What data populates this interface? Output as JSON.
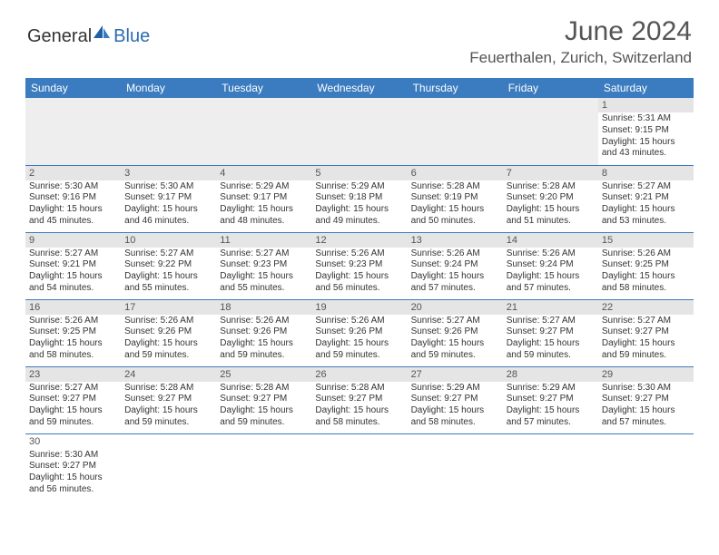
{
  "brand": {
    "general": "General",
    "blue": "Blue"
  },
  "title": "June 2024",
  "location": "Feuerthalen, Zurich, Switzerland",
  "colors": {
    "header_bg": "#3b7bbf",
    "header_text": "#ffffff",
    "daynum_bg": "#e5e5e5",
    "row1_bg": "#eeeeee",
    "border": "#3b7bbf",
    "title_color": "#555555"
  },
  "weekdays": [
    "Sunday",
    "Monday",
    "Tuesday",
    "Wednesday",
    "Thursday",
    "Friday",
    "Saturday"
  ],
  "weeks": [
    [
      {
        "n": "",
        "sr": "",
        "ss": "",
        "dl": ""
      },
      {
        "n": "",
        "sr": "",
        "ss": "",
        "dl": ""
      },
      {
        "n": "",
        "sr": "",
        "ss": "",
        "dl": ""
      },
      {
        "n": "",
        "sr": "",
        "ss": "",
        "dl": ""
      },
      {
        "n": "",
        "sr": "",
        "ss": "",
        "dl": ""
      },
      {
        "n": "",
        "sr": "",
        "ss": "",
        "dl": ""
      },
      {
        "n": "1",
        "sr": "Sunrise: 5:31 AM",
        "ss": "Sunset: 9:15 PM",
        "dl": "Daylight: 15 hours and 43 minutes."
      }
    ],
    [
      {
        "n": "2",
        "sr": "Sunrise: 5:30 AM",
        "ss": "Sunset: 9:16 PM",
        "dl": "Daylight: 15 hours and 45 minutes."
      },
      {
        "n": "3",
        "sr": "Sunrise: 5:30 AM",
        "ss": "Sunset: 9:17 PM",
        "dl": "Daylight: 15 hours and 46 minutes."
      },
      {
        "n": "4",
        "sr": "Sunrise: 5:29 AM",
        "ss": "Sunset: 9:17 PM",
        "dl": "Daylight: 15 hours and 48 minutes."
      },
      {
        "n": "5",
        "sr": "Sunrise: 5:29 AM",
        "ss": "Sunset: 9:18 PM",
        "dl": "Daylight: 15 hours and 49 minutes."
      },
      {
        "n": "6",
        "sr": "Sunrise: 5:28 AM",
        "ss": "Sunset: 9:19 PM",
        "dl": "Daylight: 15 hours and 50 minutes."
      },
      {
        "n": "7",
        "sr": "Sunrise: 5:28 AM",
        "ss": "Sunset: 9:20 PM",
        "dl": "Daylight: 15 hours and 51 minutes."
      },
      {
        "n": "8",
        "sr": "Sunrise: 5:27 AM",
        "ss": "Sunset: 9:21 PM",
        "dl": "Daylight: 15 hours and 53 minutes."
      }
    ],
    [
      {
        "n": "9",
        "sr": "Sunrise: 5:27 AM",
        "ss": "Sunset: 9:21 PM",
        "dl": "Daylight: 15 hours and 54 minutes."
      },
      {
        "n": "10",
        "sr": "Sunrise: 5:27 AM",
        "ss": "Sunset: 9:22 PM",
        "dl": "Daylight: 15 hours and 55 minutes."
      },
      {
        "n": "11",
        "sr": "Sunrise: 5:27 AM",
        "ss": "Sunset: 9:23 PM",
        "dl": "Daylight: 15 hours and 55 minutes."
      },
      {
        "n": "12",
        "sr": "Sunrise: 5:26 AM",
        "ss": "Sunset: 9:23 PM",
        "dl": "Daylight: 15 hours and 56 minutes."
      },
      {
        "n": "13",
        "sr": "Sunrise: 5:26 AM",
        "ss": "Sunset: 9:24 PM",
        "dl": "Daylight: 15 hours and 57 minutes."
      },
      {
        "n": "14",
        "sr": "Sunrise: 5:26 AM",
        "ss": "Sunset: 9:24 PM",
        "dl": "Daylight: 15 hours and 57 minutes."
      },
      {
        "n": "15",
        "sr": "Sunrise: 5:26 AM",
        "ss": "Sunset: 9:25 PM",
        "dl": "Daylight: 15 hours and 58 minutes."
      }
    ],
    [
      {
        "n": "16",
        "sr": "Sunrise: 5:26 AM",
        "ss": "Sunset: 9:25 PM",
        "dl": "Daylight: 15 hours and 58 minutes."
      },
      {
        "n": "17",
        "sr": "Sunrise: 5:26 AM",
        "ss": "Sunset: 9:26 PM",
        "dl": "Daylight: 15 hours and 59 minutes."
      },
      {
        "n": "18",
        "sr": "Sunrise: 5:26 AM",
        "ss": "Sunset: 9:26 PM",
        "dl": "Daylight: 15 hours and 59 minutes."
      },
      {
        "n": "19",
        "sr": "Sunrise: 5:26 AM",
        "ss": "Sunset: 9:26 PM",
        "dl": "Daylight: 15 hours and 59 minutes."
      },
      {
        "n": "20",
        "sr": "Sunrise: 5:27 AM",
        "ss": "Sunset: 9:26 PM",
        "dl": "Daylight: 15 hours and 59 minutes."
      },
      {
        "n": "21",
        "sr": "Sunrise: 5:27 AM",
        "ss": "Sunset: 9:27 PM",
        "dl": "Daylight: 15 hours and 59 minutes."
      },
      {
        "n": "22",
        "sr": "Sunrise: 5:27 AM",
        "ss": "Sunset: 9:27 PM",
        "dl": "Daylight: 15 hours and 59 minutes."
      }
    ],
    [
      {
        "n": "23",
        "sr": "Sunrise: 5:27 AM",
        "ss": "Sunset: 9:27 PM",
        "dl": "Daylight: 15 hours and 59 minutes."
      },
      {
        "n": "24",
        "sr": "Sunrise: 5:28 AM",
        "ss": "Sunset: 9:27 PM",
        "dl": "Daylight: 15 hours and 59 minutes."
      },
      {
        "n": "25",
        "sr": "Sunrise: 5:28 AM",
        "ss": "Sunset: 9:27 PM",
        "dl": "Daylight: 15 hours and 59 minutes."
      },
      {
        "n": "26",
        "sr": "Sunrise: 5:28 AM",
        "ss": "Sunset: 9:27 PM",
        "dl": "Daylight: 15 hours and 58 minutes."
      },
      {
        "n": "27",
        "sr": "Sunrise: 5:29 AM",
        "ss": "Sunset: 9:27 PM",
        "dl": "Daylight: 15 hours and 58 minutes."
      },
      {
        "n": "28",
        "sr": "Sunrise: 5:29 AM",
        "ss": "Sunset: 9:27 PM",
        "dl": "Daylight: 15 hours and 57 minutes."
      },
      {
        "n": "29",
        "sr": "Sunrise: 5:30 AM",
        "ss": "Sunset: 9:27 PM",
        "dl": "Daylight: 15 hours and 57 minutes."
      }
    ],
    [
      {
        "n": "30",
        "sr": "Sunrise: 5:30 AM",
        "ss": "Sunset: 9:27 PM",
        "dl": "Daylight: 15 hours and 56 minutes."
      },
      {
        "n": "",
        "sr": "",
        "ss": "",
        "dl": ""
      },
      {
        "n": "",
        "sr": "",
        "ss": "",
        "dl": ""
      },
      {
        "n": "",
        "sr": "",
        "ss": "",
        "dl": ""
      },
      {
        "n": "",
        "sr": "",
        "ss": "",
        "dl": ""
      },
      {
        "n": "",
        "sr": "",
        "ss": "",
        "dl": ""
      },
      {
        "n": "",
        "sr": "",
        "ss": "",
        "dl": ""
      }
    ]
  ]
}
